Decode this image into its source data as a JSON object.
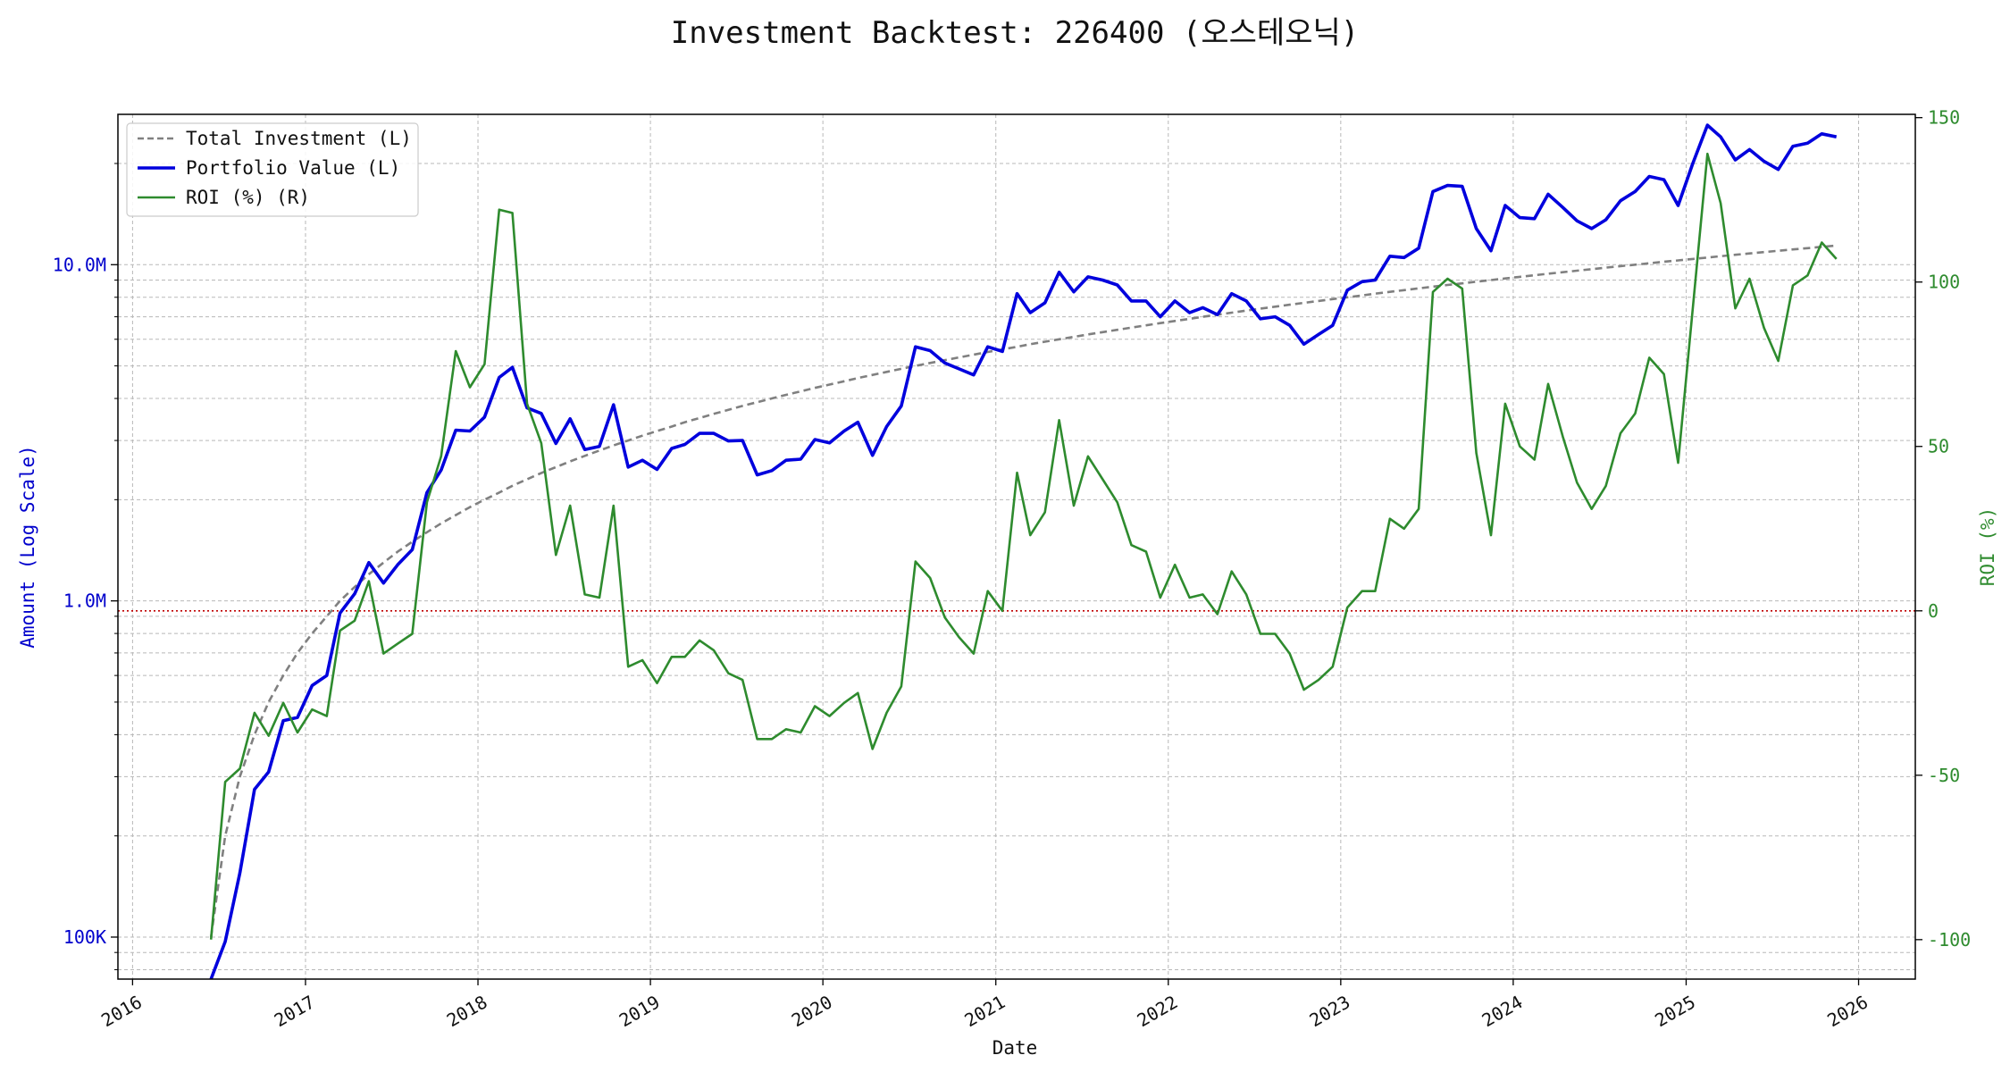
{
  "chart_data": {
    "type": "line",
    "title": "Investment Backtest: 226400 (오스테오닉)",
    "xlabel": "Date",
    "ylabel_left": "Amount (Log Scale)",
    "ylabel_right": "ROI (%)",
    "y_left_scale": "log",
    "ylim_left": [
      75000,
      28000000
    ],
    "ylim_right": [
      -112,
      151
    ],
    "xlim": [
      "2015-12-01",
      "2026-05-01"
    ],
    "grid": true,
    "legend_position": "top-left",
    "x_ticks": [
      "2016-01-01",
      "2017-01-01",
      "2018-01-01",
      "2019-01-01",
      "2020-01-01",
      "2021-01-01",
      "2022-01-01",
      "2023-01-01",
      "2024-01-01",
      "2025-01-01",
      "2026-01-01"
    ],
    "x_tick_labels": [
      "2016",
      "2017",
      "2018",
      "2019",
      "2020",
      "2021",
      "2022",
      "2023",
      "2024",
      "2025",
      "2026"
    ],
    "y_left_ticks": [
      100000,
      1000000,
      10000000
    ],
    "y_left_tick_labels": [
      "100K",
      "1.0M",
      "10.0M"
    ],
    "y_right_ticks": [
      -100,
      -50,
      0,
      50,
      100,
      150
    ],
    "y_right_tick_labels": [
      "-100",
      "-50",
      "0",
      "50",
      "100",
      "150"
    ],
    "reference_line": {
      "axis": "right",
      "value": 0,
      "style": "dotted",
      "color": "#c00000"
    },
    "colors": {
      "total": "#808080",
      "portfolio": "#0000dd",
      "roi": "#2e8b2e",
      "left_axis": "#0000cc",
      "right_axis": "#2e8b2e"
    },
    "dates": [
      "2016-06",
      "2016-07",
      "2016-08",
      "2016-09",
      "2016-10",
      "2016-11",
      "2016-12",
      "2017-01",
      "2017-02",
      "2017-03",
      "2017-04",
      "2017-05",
      "2017-06",
      "2017-07",
      "2017-08",
      "2017-09",
      "2017-10",
      "2017-11",
      "2017-12",
      "2018-01",
      "2018-02",
      "2018-03",
      "2018-04",
      "2018-05",
      "2018-06",
      "2018-07",
      "2018-08",
      "2018-09",
      "2018-10",
      "2018-11",
      "2018-12",
      "2019-01",
      "2019-02",
      "2019-03",
      "2019-04",
      "2019-05",
      "2019-06",
      "2019-07",
      "2019-08",
      "2019-09",
      "2019-10",
      "2019-11",
      "2019-12",
      "2020-01",
      "2020-02",
      "2020-03",
      "2020-04",
      "2020-05",
      "2020-06",
      "2020-07",
      "2020-08",
      "2020-09",
      "2020-10",
      "2020-11",
      "2020-12",
      "2021-01",
      "2021-02",
      "2021-03",
      "2021-04",
      "2021-05",
      "2021-06",
      "2021-07",
      "2021-08",
      "2021-09",
      "2021-10",
      "2021-11",
      "2021-12",
      "2022-01",
      "2022-02",
      "2022-03",
      "2022-04",
      "2022-05",
      "2022-06",
      "2022-07",
      "2022-08",
      "2022-09",
      "2022-10",
      "2022-11",
      "2022-12",
      "2023-01",
      "2023-02",
      "2023-03",
      "2023-04",
      "2023-05",
      "2023-06",
      "2023-07",
      "2023-08",
      "2023-09",
      "2023-10",
      "2023-11",
      "2023-12",
      "2024-01",
      "2024-02",
      "2024-03",
      "2024-04",
      "2024-05",
      "2024-06",
      "2024-07",
      "2024-08",
      "2024-09",
      "2024-10",
      "2024-11",
      "2024-12",
      "2025-01",
      "2025-02",
      "2025-03",
      "2025-04",
      "2025-05",
      "2025-06",
      "2025-07",
      "2025-08",
      "2025-09",
      "2025-10",
      "2025-11"
    ],
    "series": [
      {
        "name": "Total Investment (L)",
        "axis": "left",
        "style": "dashed",
        "values": [
          100000,
          200000,
          300000,
          400000,
          500000,
          600000,
          700000,
          800000,
          900000,
          1000000,
          1100000,
          1200000,
          1300000,
          1400000,
          1500000,
          1600000,
          1700000,
          1800000,
          1900000,
          2000000,
          2100000,
          2200000,
          2300000,
          2400000,
          2500000,
          2600000,
          2700000,
          2800000,
          2900000,
          3000000,
          3100000,
          3200000,
          3300000,
          3400000,
          3500000,
          3600000,
          3700000,
          3800000,
          3900000,
          4000000,
          4100000,
          4200000,
          4300000,
          4400000,
          4500000,
          4600000,
          4700000,
          4800000,
          4900000,
          5000000,
          5100000,
          5200000,
          5300000,
          5400000,
          5500000,
          5600000,
          5700000,
          5800000,
          5900000,
          6000000,
          6100000,
          6200000,
          6300000,
          6400000,
          6500000,
          6600000,
          6700000,
          6800000,
          6900000,
          7000000,
          7100000,
          7200000,
          7300000,
          7400000,
          7500000,
          7600000,
          7700000,
          7800000,
          7900000,
          8000000,
          8100000,
          8200000,
          8300000,
          8400000,
          8500000,
          8600000,
          8700000,
          8800000,
          8900000,
          9000000,
          9100000,
          9200000,
          9300000,
          9400000,
          9500000,
          9600000,
          9700000,
          9800000,
          9900000,
          10000000,
          10100000,
          10200000,
          10300000,
          10400000,
          10500000,
          10600000,
          10700000,
          10800000,
          10900000,
          11000000,
          11100000,
          11200000,
          11300000,
          11400000
        ]
      },
      {
        "name": "Portfolio Value (L)",
        "axis": "left",
        "style": "solid",
        "values": [
          30000,
          97000,
          155000,
          275000,
          310000,
          440000,
          450000,
          560000,
          600000,
          920000,
          1050000,
          1300000,
          1130000,
          1280000,
          1420000,
          2100000,
          2450000,
          3220000,
          3200000,
          3520000,
          4620000,
          4950000,
          3750000,
          3610000,
          2940000,
          3480000,
          2820000,
          2880000,
          3830000,
          2500000,
          2620000,
          2460000,
          2840000,
          2920000,
          3150000,
          3150000,
          2990000,
          3000000,
          2370000,
          2440000,
          2620000,
          2640000,
          3020000,
          2950000,
          3200000,
          3400000,
          2710000,
          3300000,
          3800000,
          5700000,
          5550000,
          5100000,
          4900000,
          4700000,
          5700000,
          5520000,
          8200000,
          7200000,
          7700000,
          9500000,
          8300000,
          9200000,
          9000000,
          8700000,
          7800000,
          7800000,
          7000000,
          7800000,
          7200000,
          7450000,
          7100000,
          8200000,
          7800000,
          6900000,
          7000000,
          6600000,
          5800000,
          6200000,
          6600000,
          8400000,
          8900000,
          9000000,
          10600000,
          10500000,
          11200000,
          16500000,
          17200000,
          17100000,
          12800000,
          11000000,
          15000000,
          13800000,
          13700000,
          16200000,
          14800000,
          13500000,
          12800000,
          13600000,
          15500000,
          16500000,
          18300000,
          17900000,
          15000000,
          20000000,
          26000000,
          24000000,
          20500000,
          22000000,
          20300000,
          19200000,
          22500000,
          23000000,
          24500000,
          24000000
        ]
      },
      {
        "name": "ROI (%) (R)",
        "axis": "right",
        "style": "solid",
        "values": [
          -100,
          -52,
          -48,
          -31,
          -38,
          -28,
          -37,
          -30,
          -32,
          -6,
          -3,
          9,
          -13,
          -10,
          -7,
          33,
          47,
          79,
          68,
          75,
          122,
          121,
          63,
          51,
          17,
          32,
          5,
          4,
          32,
          -17,
          -15,
          -22,
          -14,
          -14,
          -9,
          -12,
          -19,
          -21,
          -39,
          -39,
          -36,
          -37,
          -29,
          -32,
          -28,
          -25,
          -42,
          -31,
          -23,
          15,
          10,
          -2,
          -8,
          -13,
          6,
          0,
          42,
          23,
          30,
          58,
          32,
          47,
          40,
          33,
          20,
          18,
          4,
          14,
          4,
          5,
          -1,
          12,
          5,
          -7,
          -7,
          -13,
          -24,
          -21,
          -17,
          1,
          6,
          6,
          28,
          25,
          31,
          97,
          101,
          98,
          48,
          23,
          63,
          50,
          46,
          69,
          53,
          39,
          31,
          38,
          54,
          60,
          77,
          72,
          45,
          92,
          139,
          124,
          92,
          101,
          86,
          76,
          99,
          102,
          112,
          107
        ]
      }
    ]
  }
}
